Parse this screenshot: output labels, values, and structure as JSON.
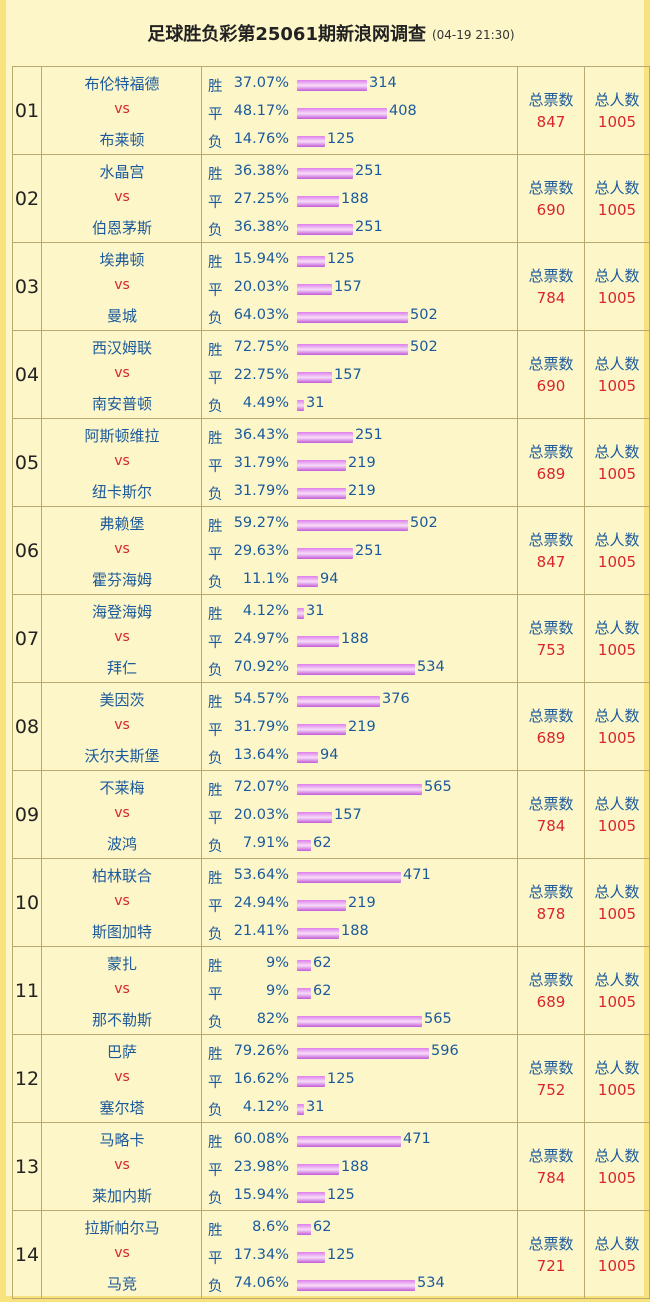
{
  "header": {
    "title": "足球胜负彩第25061期新浪网调查",
    "subtitle": "(04-19 21:30)"
  },
  "labels": {
    "win": "胜",
    "draw": "平",
    "lose": "负",
    "vs": "vs",
    "total_votes": "总票数",
    "total_people": "总人数"
  },
  "colors": {
    "team": "#1a5a9c",
    "accent_red": "#d9262b",
    "bar": "#dd7fe8",
    "background": "#fdf6c9",
    "border": "#f7e27d"
  },
  "bar_scale_max": 596,
  "matches": [
    {
      "num": "01",
      "home": "布伦特福德",
      "away": "布莱顿",
      "win": {
        "pct": "37.07%",
        "count": 314
      },
      "draw": {
        "pct": "48.17%",
        "count": 408
      },
      "lose": {
        "pct": "14.76%",
        "count": 125
      },
      "total_votes": "847",
      "total_people": "1005"
    },
    {
      "num": "02",
      "home": "水晶宫",
      "away": "伯恩茅斯",
      "win": {
        "pct": "36.38%",
        "count": 251
      },
      "draw": {
        "pct": "27.25%",
        "count": 188
      },
      "lose": {
        "pct": "36.38%",
        "count": 251
      },
      "total_votes": "690",
      "total_people": "1005"
    },
    {
      "num": "03",
      "home": "埃弗顿",
      "away": "曼城",
      "win": {
        "pct": "15.94%",
        "count": 125
      },
      "draw": {
        "pct": "20.03%",
        "count": 157
      },
      "lose": {
        "pct": "64.03%",
        "count": 502
      },
      "total_votes": "784",
      "total_people": "1005"
    },
    {
      "num": "04",
      "home": "西汉姆联",
      "away": "南安普顿",
      "win": {
        "pct": "72.75%",
        "count": 502
      },
      "draw": {
        "pct": "22.75%",
        "count": 157
      },
      "lose": {
        "pct": "4.49%",
        "count": 31
      },
      "total_votes": "690",
      "total_people": "1005"
    },
    {
      "num": "05",
      "home": "阿斯顿维拉",
      "away": "纽卡斯尔",
      "win": {
        "pct": "36.43%",
        "count": 251
      },
      "draw": {
        "pct": "31.79%",
        "count": 219
      },
      "lose": {
        "pct": "31.79%",
        "count": 219
      },
      "total_votes": "689",
      "total_people": "1005"
    },
    {
      "num": "06",
      "home": "弗赖堡",
      "away": "霍芬海姆",
      "win": {
        "pct": "59.27%",
        "count": 502
      },
      "draw": {
        "pct": "29.63%",
        "count": 251
      },
      "lose": {
        "pct": "11.1%",
        "count": 94
      },
      "total_votes": "847",
      "total_people": "1005"
    },
    {
      "num": "07",
      "home": "海登海姆",
      "away": "拜仁",
      "win": {
        "pct": "4.12%",
        "count": 31
      },
      "draw": {
        "pct": "24.97%",
        "count": 188
      },
      "lose": {
        "pct": "70.92%",
        "count": 534
      },
      "total_votes": "753",
      "total_people": "1005"
    },
    {
      "num": "08",
      "home": "美因茨",
      "away": "沃尔夫斯堡",
      "win": {
        "pct": "54.57%",
        "count": 376
      },
      "draw": {
        "pct": "31.79%",
        "count": 219
      },
      "lose": {
        "pct": "13.64%",
        "count": 94
      },
      "total_votes": "689",
      "total_people": "1005"
    },
    {
      "num": "09",
      "home": "不莱梅",
      "away": "波鸿",
      "win": {
        "pct": "72.07%",
        "count": 565
      },
      "draw": {
        "pct": "20.03%",
        "count": 157
      },
      "lose": {
        "pct": "7.91%",
        "count": 62
      },
      "total_votes": "784",
      "total_people": "1005"
    },
    {
      "num": "10",
      "home": "柏林联合",
      "away": "斯图加特",
      "win": {
        "pct": "53.64%",
        "count": 471
      },
      "draw": {
        "pct": "24.94%",
        "count": 219
      },
      "lose": {
        "pct": "21.41%",
        "count": 188
      },
      "total_votes": "878",
      "total_people": "1005"
    },
    {
      "num": "11",
      "home": "蒙扎",
      "away": "那不勒斯",
      "win": {
        "pct": "9%",
        "count": 62
      },
      "draw": {
        "pct": "9%",
        "count": 62
      },
      "lose": {
        "pct": "82%",
        "count": 565
      },
      "total_votes": "689",
      "total_people": "1005"
    },
    {
      "num": "12",
      "home": "巴萨",
      "away": "塞尔塔",
      "win": {
        "pct": "79.26%",
        "count": 596
      },
      "draw": {
        "pct": "16.62%",
        "count": 125
      },
      "lose": {
        "pct": "4.12%",
        "count": 31
      },
      "total_votes": "752",
      "total_people": "1005"
    },
    {
      "num": "13",
      "home": "马略卡",
      "away": "莱加内斯",
      "win": {
        "pct": "60.08%",
        "count": 471
      },
      "draw": {
        "pct": "23.98%",
        "count": 188
      },
      "lose": {
        "pct": "15.94%",
        "count": 125
      },
      "total_votes": "784",
      "total_people": "1005"
    },
    {
      "num": "14",
      "home": "拉斯帕尔马",
      "away": "马竞",
      "win": {
        "pct": "8.6%",
        "count": 62
      },
      "draw": {
        "pct": "17.34%",
        "count": 125
      },
      "lose": {
        "pct": "74.06%",
        "count": 534
      },
      "total_votes": "721",
      "total_people": "1005"
    }
  ]
}
